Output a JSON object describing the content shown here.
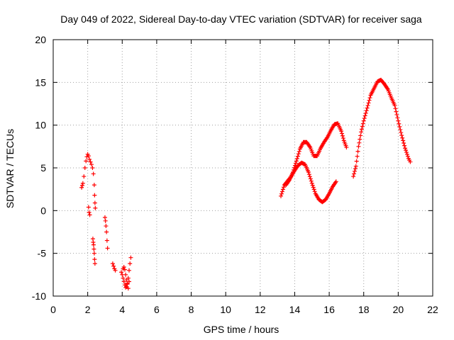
{
  "colors": {
    "points": "#ff0000",
    "grid": "#a0a0a0",
    "axes": "#000000",
    "background": "#ffffff"
  },
  "chart_data": {
    "type": "scatter",
    "title": "Day 049 of 2022, Sidereal Day-to-day VTEC variation (SDTVAR) for receiver saga",
    "xlabel": "GPS time / hours",
    "ylabel": "SDTVAR / TECUs",
    "xlim": [
      0,
      22
    ],
    "ylim": [
      -10,
      20
    ],
    "xticks": [
      0,
      2,
      4,
      6,
      8,
      10,
      12,
      14,
      16,
      18,
      20,
      22
    ],
    "yticks": [
      -10,
      -5,
      0,
      5,
      10,
      15,
      20
    ],
    "grid": true,
    "marker": "+",
    "series": [
      {
        "name": "SDTVAR",
        "segments": [
          {
            "x": [
              1.65,
              1.72,
              1.78,
              1.84,
              1.9,
              1.95,
              2.0,
              2.05,
              2.1,
              2.16,
              2.22,
              2.28,
              2.33,
              2.38,
              2.4,
              2.42,
              2.44
            ],
            "y": [
              2.7,
              3.2,
              4.0,
              5.0,
              5.8,
              6.3,
              6.6,
              6.4,
              6.0,
              5.7,
              5.4,
              5.0,
              4.3,
              3.0,
              1.8,
              0.9,
              0.3
            ]
          },
          {
            "x": [
              2.05,
              2.08,
              2.12
            ],
            "y": [
              0.4,
              -0.2,
              -0.5
            ]
          },
          {
            "x": [
              2.3,
              2.32,
              2.34,
              2.36,
              2.38,
              2.4,
              2.42
            ],
            "y": [
              -3.3,
              -3.7,
              -4.0,
              -4.5,
              -5.0,
              -5.7,
              -6.2
            ]
          },
          {
            "x": [
              3.0,
              3.03,
              3.06,
              3.09,
              3.12,
              3.15
            ],
            "y": [
              -0.8,
              -1.2,
              -1.8,
              -2.5,
              -3.5,
              -4.4
            ]
          },
          {
            "x": [
              3.45,
              3.5,
              3.55,
              3.6
            ],
            "y": [
              -6.2,
              -6.5,
              -6.8,
              -7.0
            ]
          },
          {
            "x": [
              3.95,
              4.0,
              4.05,
              4.1,
              4.15,
              4.2,
              4.25,
              4.3,
              4.35,
              4.4,
              4.45,
              4.5
            ],
            "y": [
              -7.2,
              -7.5,
              -7.9,
              -8.3,
              -8.7,
              -9.0,
              -8.9,
              -8.5,
              -7.9,
              -7.0,
              -6.2,
              -5.5
            ]
          },
          {
            "x": [
              4.05,
              4.1,
              4.15,
              4.2,
              4.25,
              4.3,
              4.35,
              4.4
            ],
            "y": [
              -6.8,
              -6.6,
              -6.9,
              -7.5,
              -8.1,
              -8.6,
              -9.1,
              -8.3
            ]
          },
          {
            "x": [
              13.2,
              13.4,
              13.6,
              13.8,
              14.0,
              14.2,
              14.4,
              14.6,
              14.8,
              15.0,
              15.2,
              15.4,
              15.6,
              15.8,
              16.0,
              16.2,
              16.4
            ],
            "y": [
              1.7,
              3.0,
              3.5,
              4.0,
              4.7,
              5.3,
              5.6,
              5.4,
              4.5,
              3.2,
              2.0,
              1.3,
              1.0,
              1.3,
              2.0,
              2.8,
              3.4
            ]
          },
          {
            "x": [
              13.5,
              13.7,
              13.9,
              14.1,
              14.3,
              14.5,
              14.7,
              14.9,
              15.1,
              15.3,
              15.5,
              15.7,
              15.9,
              16.1,
              16.3,
              16.5,
              16.7,
              16.85,
              17.0
            ],
            "y": [
              3.0,
              3.6,
              4.5,
              5.8,
              7.2,
              8.0,
              8.0,
              7.4,
              6.4,
              6.4,
              7.3,
              8.0,
              8.6,
              9.4,
              10.1,
              10.2,
              9.3,
              8.2,
              7.4
            ]
          },
          {
            "x": [
              17.4,
              17.55,
              17.7,
              17.85,
              18.0,
              18.2,
              18.4,
              18.6,
              18.8,
              19.0,
              19.2,
              19.4,
              19.6,
              19.8,
              20.0,
              20.2,
              20.4,
              20.6,
              20.7
            ],
            "y": [
              4.0,
              5.2,
              7.5,
              9.2,
              10.5,
              12.0,
              13.5,
              14.3,
              15.1,
              15.3,
              14.8,
              14.2,
              13.2,
              12.3,
              10.5,
              8.8,
              7.3,
              6.1,
              5.7
            ]
          }
        ]
      }
    ]
  }
}
